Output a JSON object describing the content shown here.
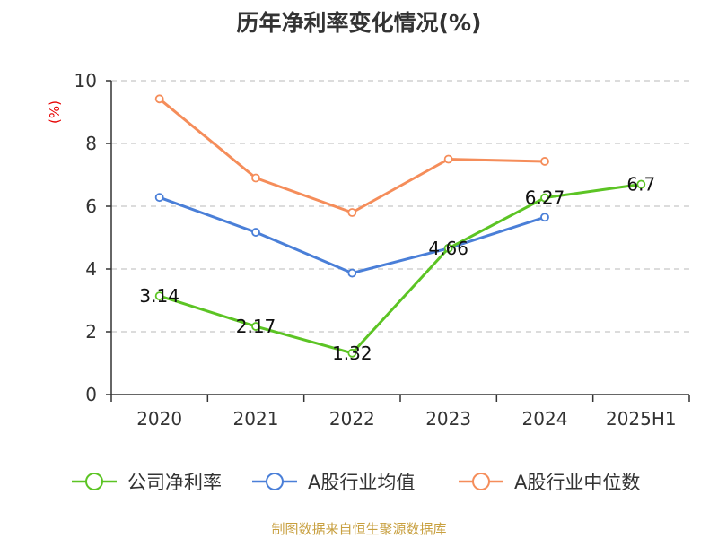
{
  "chart_data": {
    "type": "line",
    "title": "历年净利率变化情况(%)",
    "ylabel": "(%)",
    "xlabel": "",
    "categories": [
      "2020",
      "2021",
      "2022",
      "2023",
      "2024",
      "2025H1"
    ],
    "ylim": [
      0,
      10
    ],
    "yticks": [
      0,
      2,
      4,
      6,
      8,
      10
    ],
    "grid": true,
    "legend_position": "bottom",
    "series": [
      {
        "name": "公司净利率",
        "color": "#5cc424",
        "values": [
          3.14,
          2.17,
          1.32,
          4.66,
          6.27,
          6.7
        ],
        "labels": [
          "3.14",
          "2.17",
          "1.32",
          "4.66",
          "6.27",
          "6.7"
        ]
      },
      {
        "name": "A股行业均值",
        "color": "#4a7fd8",
        "values": [
          6.28,
          5.17,
          3.87,
          4.66,
          5.65,
          null
        ]
      },
      {
        "name": "A股行业中位数",
        "color": "#f58d5a",
        "values": [
          9.42,
          6.9,
          5.8,
          7.5,
          7.43,
          null
        ]
      }
    ],
    "source": "制图数据来自恒生聚源数据库"
  }
}
